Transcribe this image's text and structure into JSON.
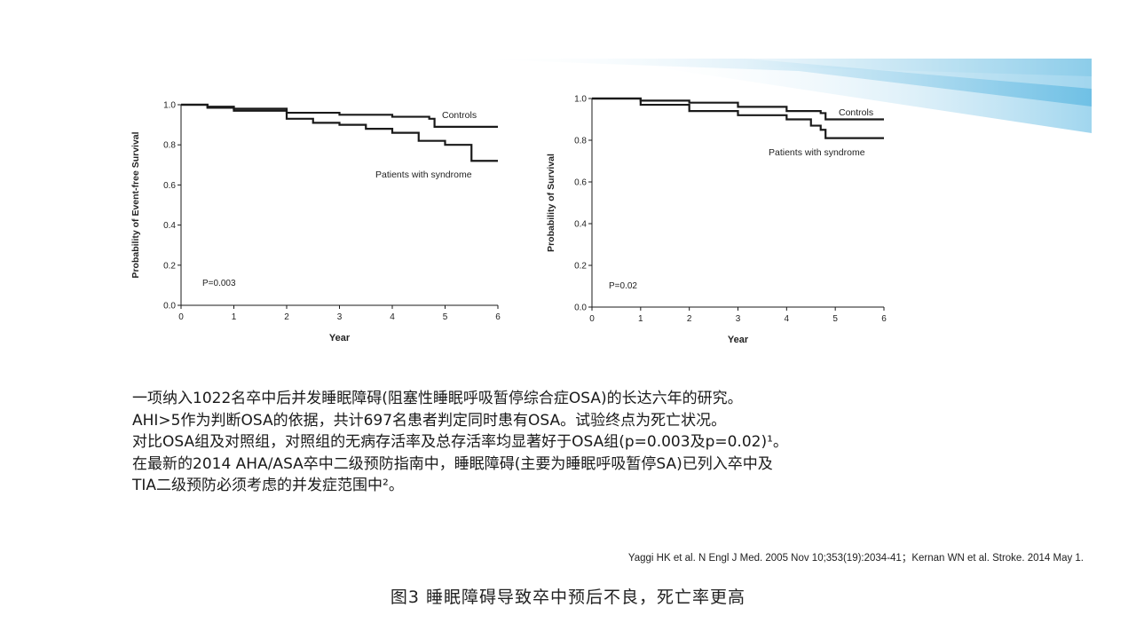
{
  "charts": [
    {
      "id": "left",
      "ylabel": "Probability of Event-free Survival",
      "xlabel": "Year",
      "pvalue": "P=0.003",
      "xticks": [
        "0",
        "1",
        "2",
        "3",
        "4",
        "5",
        "6"
      ],
      "yticks": [
        "0.0",
        "0.2",
        "0.4",
        "0.6",
        "0.8",
        "1.0"
      ],
      "series_labels": [
        "Controls",
        "Patients with syndrome"
      ]
    },
    {
      "id": "right",
      "ylabel": "Probability of Survival",
      "xlabel": "Year",
      "pvalue": "P=0.02",
      "xticks": [
        "0",
        "1",
        "2",
        "3",
        "4",
        "5",
        "6"
      ],
      "yticks": [
        "0.0",
        "0.2",
        "0.4",
        "0.6",
        "0.8",
        "1.0"
      ],
      "series_labels": [
        "Controls",
        "Patients with syndrome"
      ]
    }
  ],
  "chart_data": [
    {
      "type": "line",
      "xlabel": "Year",
      "ylabel": "Probability of Event-free Survival",
      "xlim": [
        0,
        6
      ],
      "ylim": [
        0,
        1.0
      ],
      "annotation": "P=0.003",
      "series": [
        {
          "name": "Controls",
          "step": true,
          "x": [
            0,
            0.5,
            1,
            2,
            3,
            4,
            4.7,
            4.8,
            6
          ],
          "y": [
            1.0,
            0.99,
            0.98,
            0.96,
            0.95,
            0.94,
            0.93,
            0.89,
            0.89
          ]
        },
        {
          "name": "Patients with syndrome",
          "step": true,
          "x": [
            0,
            0.5,
            1,
            2,
            2.5,
            3,
            3.5,
            4,
            4.5,
            5,
            5.5,
            6
          ],
          "y": [
            1.0,
            0.985,
            0.97,
            0.93,
            0.91,
            0.9,
            0.88,
            0.86,
            0.82,
            0.8,
            0.72,
            0.72
          ]
        }
      ]
    },
    {
      "type": "line",
      "xlabel": "Year",
      "ylabel": "Probability of Survival",
      "xlim": [
        0,
        6
      ],
      "ylim": [
        0,
        1.0
      ],
      "annotation": "P=0.02",
      "series": [
        {
          "name": "Controls",
          "step": true,
          "x": [
            0,
            1,
            2,
            3,
            4,
            4.7,
            4.8,
            6
          ],
          "y": [
            1.0,
            0.99,
            0.98,
            0.96,
            0.94,
            0.93,
            0.9,
            0.9
          ]
        },
        {
          "name": "Patients with syndrome",
          "step": true,
          "x": [
            0,
            1,
            2,
            3,
            4,
            4.5,
            4.7,
            4.8,
            6
          ],
          "y": [
            1.0,
            0.97,
            0.94,
            0.92,
            0.9,
            0.87,
            0.85,
            0.81,
            0.81
          ]
        }
      ]
    }
  ],
  "text": {
    "lines": [
      "一项纳入1022名卒中后并发睡眠障碍(阻塞性睡眠呼吸暂停综合症OSA)的长达六年的研究。",
      "AHI>5作为判断OSA的依据，共计697名患者判定同时患有OSA。试验终点为死亡状况。",
      "对比OSA组及对照组，对照组的无病存活率及总存活率均显著好于OSA组(p=0.003及p=0.02)¹。",
      "在最新的2014 AHA/ASA卒中二级预防指南中，睡眠障碍(主要为睡眠呼吸暂停SA)已列入卒中及",
      "TIA二级预防必须考虑的并发症范围中²。"
    ],
    "citation": "Yaggi HK et al. N Engl J Med. 2005 Nov 10;353(19):2034-41；Kernan WN et al. Stroke. 2014 May 1.",
    "caption": "图3  睡眠障碍导致卒中预后不良，死亡率更高"
  },
  "colors": {
    "line": "#1a1a1a",
    "banner": "#5bb8e0"
  }
}
